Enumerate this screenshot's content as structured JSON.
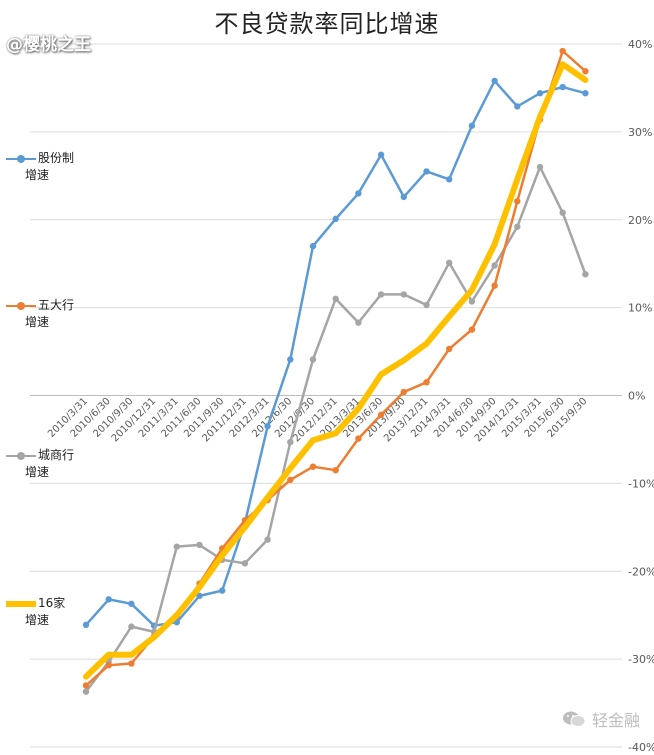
{
  "watermark": "@樱桃之王",
  "brand": {
    "name": "轻金融",
    "icon": "wechat-icon"
  },
  "chart_data": {
    "type": "line",
    "title": "不良贷款率同比增速",
    "xlabel": "",
    "ylabel": "",
    "ylim": [
      -40,
      40
    ],
    "y_axis_position": "right",
    "yticks": [
      40,
      30,
      20,
      10,
      0,
      -10,
      -20,
      -30,
      -40
    ],
    "ytick_labels": [
      "40%",
      "30%",
      "20%",
      "10%",
      "0%",
      "-10%",
      "-20%",
      "-30%",
      "-40%"
    ],
    "grid": true,
    "legend_position": "left",
    "categories": [
      "2010/3/31",
      "2010/6/30",
      "2010/9/30",
      "2010/12/31",
      "2011/3/31",
      "2011/6/30",
      "2011/9/30",
      "2011/12/31",
      "2012/3/31",
      "2012/6/30",
      "2012/9/30",
      "2012/12/31",
      "2013/3/31",
      "2013/6/30",
      "2013/9/30",
      "2013/12/31",
      "2014/3/31",
      "2014/6/30",
      "2014/9/30",
      "2014/12/31",
      "2015/3/31",
      "2015/6/30",
      "2015/9/30"
    ],
    "series": [
      {
        "name": "股份制增速",
        "legend_lines": [
          "股份制",
          "增速"
        ],
        "color": "#5b9bd5",
        "width": 2.5,
        "markers": true,
        "values": [
          -26.1,
          -23.2,
          -23.7,
          -26.2,
          -25.8,
          -22.8,
          -22.2,
          -14.5,
          -3.5,
          4.1,
          17.0,
          20.1,
          23.0,
          27.4,
          22.6,
          25.5,
          24.6,
          30.7,
          35.8,
          32.9,
          34.4,
          35.1,
          34.4
        ]
      },
      {
        "name": "五大行增速",
        "legend_lines": [
          "五大行",
          "增速"
        ],
        "color": "#ed7d31",
        "width": 2.5,
        "markers": true,
        "values": [
          -33.0,
          -30.7,
          -30.5,
          -27.4,
          -25.1,
          -21.4,
          -17.4,
          -14.2,
          -11.9,
          -9.6,
          -8.1,
          -8.5,
          -4.9,
          -2.2,
          0.4,
          1.5,
          5.3,
          7.5,
          12.5,
          22.1,
          31.4,
          39.2,
          36.9
        ]
      },
      {
        "name": "城商行增速",
        "legend_lines": [
          "城商行",
          "增速"
        ],
        "color": "#a5a5a5",
        "width": 2.5,
        "markers": true,
        "values": [
          -33.7,
          -30.3,
          -26.3,
          -26.9,
          -17.2,
          -17.0,
          -18.7,
          -19.1,
          -16.4,
          -5.3,
          4.1,
          11.0,
          8.3,
          11.5,
          11.5,
          10.3,
          15.1,
          10.7,
          14.8,
          19.2,
          26.0,
          20.8,
          13.8
        ]
      },
      {
        "name": "16家增速",
        "legend_lines": [
          "16家",
          "增速"
        ],
        "color": "#ffc000",
        "width": 6,
        "markers": false,
        "values": [
          -32.0,
          -29.5,
          -29.5,
          -27.5,
          -25.0,
          -21.8,
          -18.2,
          -15.0,
          -11.6,
          -8.3,
          -5.1,
          -4.3,
          -1.5,
          2.4,
          4.0,
          5.9,
          9.0,
          12.0,
          17.2,
          24.6,
          31.7,
          37.7,
          35.9
        ]
      }
    ]
  }
}
